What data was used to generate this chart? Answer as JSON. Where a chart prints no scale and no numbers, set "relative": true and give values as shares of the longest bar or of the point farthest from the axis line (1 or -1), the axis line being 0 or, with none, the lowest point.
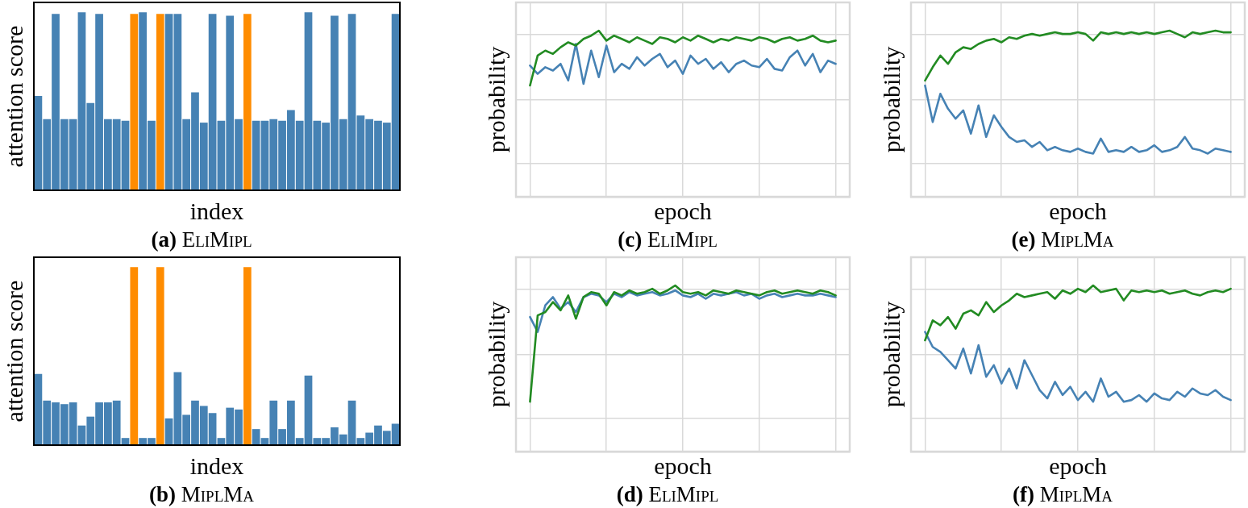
{
  "chart_data": [
    {
      "type": "bar",
      "title": "(a) EliMipl",
      "xlabel": "index",
      "ylabel": "attention score",
      "relative": true,
      "categories": [
        null,
        null,
        null,
        null,
        null,
        null,
        null,
        null,
        null,
        null,
        null,
        null,
        null,
        null,
        null,
        null,
        null,
        null,
        null,
        null,
        null,
        null,
        null,
        null,
        null,
        null,
        null,
        null,
        null,
        null,
        null,
        null,
        null,
        null,
        null,
        null,
        null,
        null,
        null,
        null,
        null,
        null
      ],
      "values": [
        0.53,
        0.4,
        0.99,
        0.4,
        0.4,
        1.0,
        0.49,
        0.99,
        0.4,
        0.4,
        0.39,
        0.99,
        1.0,
        0.39,
        0.99,
        0.99,
        0.99,
        0.4,
        0.55,
        0.38,
        0.99,
        0.39,
        0.98,
        0.4,
        0.99,
        0.39,
        0.39,
        0.4,
        0.39,
        0.45,
        0.39,
        1.0,
        0.39,
        0.38,
        0.98,
        0.4,
        0.99,
        0.42,
        0.4,
        0.39,
        0.38,
        0.99
      ],
      "colors": [
        "#4682b4",
        "#4682b4",
        "#4682b4",
        "#4682b4",
        "#4682b4",
        "#4682b4",
        "#4682b4",
        "#4682b4",
        "#4682b4",
        "#4682b4",
        "#4682b4",
        "#ff8c00",
        "#4682b4",
        "#4682b4",
        "#ff8c00",
        "#4682b4",
        "#4682b4",
        "#4682b4",
        "#4682b4",
        "#4682b4",
        "#4682b4",
        "#4682b4",
        "#4682b4",
        "#4682b4",
        "#ff8c00",
        "#4682b4",
        "#4682b4",
        "#4682b4",
        "#4682b4",
        "#4682b4",
        "#4682b4",
        "#4682b4",
        "#4682b4",
        "#4682b4",
        "#4682b4",
        "#4682b4",
        "#4682b4",
        "#4682b4",
        "#4682b4",
        "#4682b4",
        "#4682b4",
        "#4682b4"
      ]
    },
    {
      "type": "bar",
      "title": "(b) MiplMa",
      "xlabel": "index",
      "ylabel": "attention score",
      "relative": true,
      "categories": [
        null,
        null,
        null,
        null,
        null,
        null,
        null,
        null,
        null,
        null,
        null,
        null,
        null,
        null,
        null,
        null,
        null,
        null,
        null,
        null,
        null,
        null,
        null,
        null,
        null,
        null,
        null,
        null,
        null,
        null,
        null,
        null,
        null,
        null,
        null,
        null,
        null,
        null,
        null,
        null,
        null,
        null
      ],
      "values": [
        0.4,
        0.25,
        0.24,
        0.23,
        0.24,
        0.11,
        0.16,
        0.24,
        0.24,
        0.25,
        0.04,
        1.0,
        0.04,
        0.04,
        1.0,
        0.15,
        0.41,
        0.17,
        0.25,
        0.22,
        0.18,
        0.04,
        0.21,
        0.2,
        1.0,
        0.09,
        0.04,
        0.25,
        0.09,
        0.25,
        0.04,
        0.39,
        0.04,
        0.04,
        0.1,
        0.06,
        0.25,
        0.04,
        0.07,
        0.11,
        0.08,
        0.12
      ],
      "colors": [
        "#4682b4",
        "#4682b4",
        "#4682b4",
        "#4682b4",
        "#4682b4",
        "#4682b4",
        "#4682b4",
        "#4682b4",
        "#4682b4",
        "#4682b4",
        "#4682b4",
        "#ff8c00",
        "#4682b4",
        "#4682b4",
        "#ff8c00",
        "#4682b4",
        "#4682b4",
        "#4682b4",
        "#4682b4",
        "#4682b4",
        "#4682b4",
        "#4682b4",
        "#4682b4",
        "#4682b4",
        "#ff8c00",
        "#4682b4",
        "#4682b4",
        "#4682b4",
        "#4682b4",
        "#4682b4",
        "#4682b4",
        "#4682b4",
        "#4682b4",
        "#4682b4",
        "#4682b4",
        "#4682b4",
        "#4682b4",
        "#4682b4",
        "#4682b4",
        "#4682b4",
        "#4682b4",
        "#4682b4"
      ]
    },
    {
      "type": "line",
      "title": "(c) EliMipl",
      "xlabel": "epoch",
      "ylabel": "probability",
      "relative": true,
      "grid": true,
      "categories": [
        null,
        null,
        null,
        null,
        null,
        null,
        null,
        null,
        null,
        null,
        null,
        null,
        null,
        null,
        null,
        null,
        null,
        null,
        null,
        null,
        null,
        null,
        null,
        null,
        null,
        null,
        null,
        null,
        null,
        null,
        null,
        null,
        null,
        null,
        null,
        null,
        null,
        null,
        null,
        null,
        null
      ],
      "series": [
        {
          "color": "#228b22",
          "values": [
            0.67,
            0.85,
            0.88,
            0.86,
            0.9,
            0.93,
            0.91,
            0.95,
            0.97,
            1.0,
            0.94,
            0.97,
            0.95,
            0.93,
            0.96,
            0.94,
            0.92,
            0.96,
            0.95,
            0.93,
            0.96,
            0.94,
            0.97,
            0.95,
            0.93,
            0.95,
            0.94,
            0.96,
            0.95,
            0.94,
            0.96,
            0.95,
            0.93,
            0.95,
            0.96,
            0.94,
            0.95,
            0.97,
            0.94,
            0.93,
            0.94
          ]
        },
        {
          "color": "#4682b4",
          "values": [
            0.79,
            0.74,
            0.78,
            0.76,
            0.8,
            0.7,
            0.92,
            0.68,
            0.88,
            0.72,
            0.91,
            0.75,
            0.8,
            0.77,
            0.84,
            0.79,
            0.83,
            0.86,
            0.78,
            0.82,
            0.74,
            0.85,
            0.8,
            0.83,
            0.77,
            0.81,
            0.75,
            0.8,
            0.82,
            0.79,
            0.78,
            0.83,
            0.77,
            0.76,
            0.84,
            0.88,
            0.79,
            0.86,
            0.75,
            0.82,
            0.8
          ]
        }
      ]
    },
    {
      "type": "line",
      "title": "(d) EliMipl",
      "xlabel": "epoch",
      "ylabel": "probability",
      "relative": true,
      "grid": true,
      "categories": [
        null,
        null,
        null,
        null,
        null,
        null,
        null,
        null,
        null,
        null,
        null,
        null,
        null,
        null,
        null,
        null,
        null,
        null,
        null,
        null,
        null,
        null,
        null,
        null,
        null,
        null,
        null,
        null,
        null,
        null,
        null,
        null,
        null,
        null,
        null,
        null,
        null,
        null,
        null,
        null,
        null
      ],
      "series": [
        {
          "color": "#228b22",
          "values": [
            0.3,
            0.82,
            0.84,
            0.9,
            0.85,
            0.94,
            0.8,
            0.93,
            0.96,
            0.95,
            0.88,
            0.96,
            0.94,
            0.97,
            0.95,
            0.96,
            0.98,
            0.95,
            0.97,
            1.0,
            0.96,
            0.95,
            0.96,
            0.94,
            0.97,
            0.96,
            0.95,
            0.97,
            0.96,
            0.95,
            0.94,
            0.96,
            0.97,
            0.95,
            0.96,
            0.97,
            0.96,
            0.95,
            0.97,
            0.96,
            0.94
          ]
        },
        {
          "color": "#4682b4",
          "values": [
            0.81,
            0.72,
            0.88,
            0.93,
            0.86,
            0.9,
            0.84,
            0.93,
            0.95,
            0.94,
            0.9,
            0.95,
            0.93,
            0.96,
            0.94,
            0.95,
            0.96,
            0.94,
            0.95,
            0.97,
            0.94,
            0.93,
            0.95,
            0.92,
            0.95,
            0.94,
            0.95,
            0.96,
            0.94,
            0.95,
            0.92,
            0.94,
            0.95,
            0.93,
            0.94,
            0.95,
            0.94,
            0.94,
            0.95,
            0.94,
            0.93
          ]
        }
      ]
    },
    {
      "type": "line",
      "title": "(e) MiplMa",
      "xlabel": "epoch",
      "ylabel": "probability",
      "relative": true,
      "grid": true,
      "categories": [
        null,
        null,
        null,
        null,
        null,
        null,
        null,
        null,
        null,
        null,
        null,
        null,
        null,
        null,
        null,
        null,
        null,
        null,
        null,
        null,
        null,
        null,
        null,
        null,
        null,
        null,
        null,
        null,
        null,
        null,
        null,
        null,
        null,
        null,
        null,
        null,
        null,
        null,
        null,
        null,
        null
      ],
      "series": [
        {
          "color": "#228b22",
          "values": [
            0.7,
            0.78,
            0.85,
            0.8,
            0.87,
            0.9,
            0.89,
            0.92,
            0.94,
            0.95,
            0.93,
            0.96,
            0.95,
            0.97,
            0.98,
            0.97,
            0.98,
            0.99,
            0.98,
            0.98,
            0.99,
            0.98,
            0.94,
            0.99,
            0.98,
            0.99,
            0.98,
            0.99,
            0.98,
            0.99,
            0.98,
            0.99,
            1.0,
            0.98,
            0.96,
            0.99,
            0.98,
            0.99,
            1.0,
            0.99,
            0.99
          ]
        },
        {
          "color": "#4682b4",
          "values": [
            0.67,
            0.45,
            0.62,
            0.53,
            0.47,
            0.52,
            0.38,
            0.55,
            0.36,
            0.49,
            0.42,
            0.36,
            0.33,
            0.34,
            0.3,
            0.33,
            0.28,
            0.3,
            0.28,
            0.27,
            0.29,
            0.27,
            0.26,
            0.35,
            0.27,
            0.28,
            0.27,
            0.3,
            0.27,
            0.28,
            0.31,
            0.27,
            0.28,
            0.3,
            0.36,
            0.29,
            0.28,
            0.26,
            0.29,
            0.28,
            0.27
          ]
        }
      ]
    },
    {
      "type": "line",
      "title": "(f) MiplMa",
      "xlabel": "epoch",
      "ylabel": "probability",
      "relative": true,
      "grid": true,
      "categories": [
        null,
        null,
        null,
        null,
        null,
        null,
        null,
        null,
        null,
        null,
        null,
        null,
        null,
        null,
        null,
        null,
        null,
        null,
        null,
        null,
        null,
        null,
        null,
        null,
        null,
        null,
        null,
        null,
        null,
        null,
        null,
        null,
        null,
        null,
        null,
        null,
        null,
        null,
        null,
        null,
        null
      ],
      "series": [
        {
          "color": "#228b22",
          "values": [
            0.67,
            0.79,
            0.76,
            0.81,
            0.74,
            0.83,
            0.85,
            0.82,
            0.9,
            0.84,
            0.88,
            0.91,
            0.95,
            0.93,
            0.94,
            0.95,
            0.96,
            0.92,
            0.97,
            0.95,
            0.98,
            0.96,
            1.0,
            0.96,
            0.97,
            0.98,
            0.91,
            0.97,
            0.96,
            0.97,
            0.96,
            0.97,
            0.95,
            0.96,
            0.97,
            0.95,
            0.94,
            0.96,
            0.97,
            0.96,
            0.98
          ]
        },
        {
          "color": "#4682b4",
          "values": [
            0.72,
            0.63,
            0.6,
            0.55,
            0.5,
            0.62,
            0.47,
            0.64,
            0.45,
            0.52,
            0.41,
            0.5,
            0.38,
            0.55,
            0.46,
            0.37,
            0.32,
            0.42,
            0.34,
            0.39,
            0.31,
            0.36,
            0.3,
            0.44,
            0.33,
            0.36,
            0.3,
            0.31,
            0.34,
            0.3,
            0.35,
            0.32,
            0.31,
            0.36,
            0.33,
            0.38,
            0.35,
            0.34,
            0.37,
            0.33,
            0.31
          ]
        }
      ]
    }
  ]
}
